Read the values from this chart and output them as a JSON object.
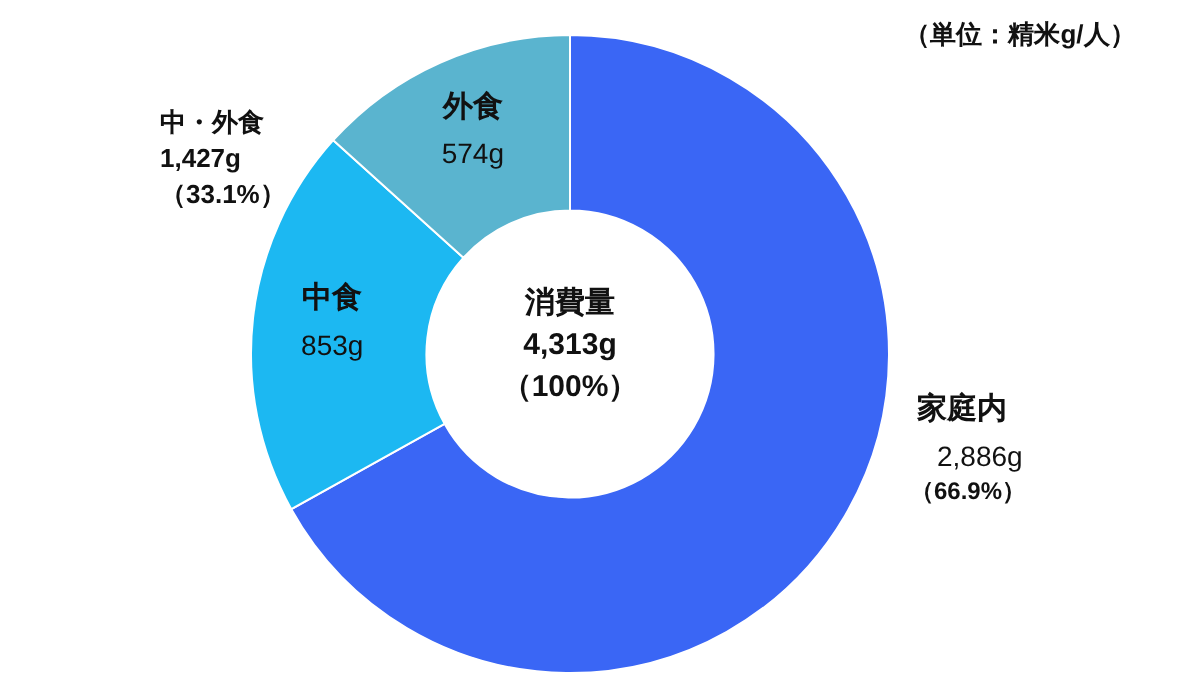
{
  "chart_data": {
    "type": "donut",
    "categories": [
      "家庭内",
      "中食",
      "外食"
    ],
    "values": [
      2886,
      853,
      574
    ],
    "value_labels": [
      "2,886g",
      "853g",
      "574g"
    ],
    "colors": [
      "#3a66f5",
      "#1cb8f2",
      "#5ab4cf"
    ],
    "legend": false,
    "annotations": [
      "（単位：精米g/人）",
      "中・外食\n1,427g\n（33.1%）",
      "消費量\n4,313g\n（100%）",
      "（66.9%）"
    ]
  }
}
